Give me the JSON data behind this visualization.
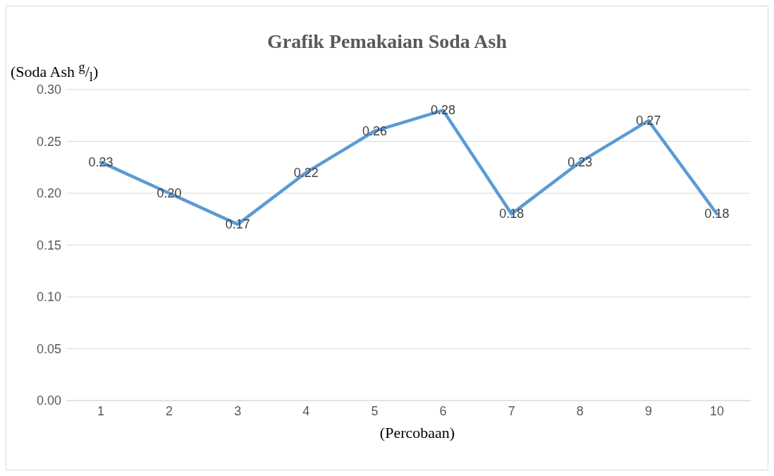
{
  "chart_data": {
    "type": "line",
    "title": "Grafik Pemakaian Soda Ash",
    "ylabel": "(Soda Ash $^{g}$/$_{l}$)",
    "xlabel": "(Percobaan)",
    "categories": [
      "1",
      "2",
      "3",
      "4",
      "5",
      "6",
      "7",
      "8",
      "9",
      "10"
    ],
    "series": [
      {
        "color": "#5b9bd5",
        "values": [
          0.23,
          0.2,
          0.17,
          0.22,
          0.26,
          0.28,
          0.18,
          0.23,
          0.27,
          0.18
        ],
        "value_labels": [
          "0.23",
          "0.20",
          "0.17",
          "0.22",
          "0.26",
          "0.28",
          "0.18",
          "0.23",
          "0.27",
          "0.18"
        ]
      }
    ],
    "ylim": [
      0,
      0.3
    ],
    "yticks": [
      {
        "value": 0,
        "label": "0.00"
      },
      {
        "value": 0.05,
        "label": "0.05"
      },
      {
        "value": 0.1,
        "label": "0.10"
      },
      {
        "value": 0.15,
        "label": "0.15"
      },
      {
        "value": 0.2,
        "label": "0.20"
      },
      {
        "value": 0.25,
        "label": "0.25"
      },
      {
        "value": 0.3,
        "label": "0.30"
      }
    ],
    "grid": "y",
    "legend": false,
    "marker": "none",
    "line_style": "solid"
  }
}
